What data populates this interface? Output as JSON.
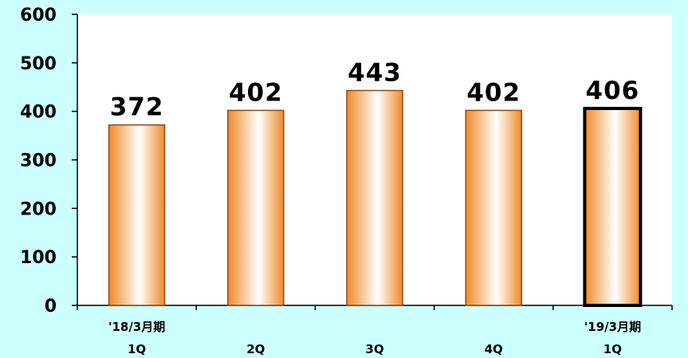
{
  "chart_data": {
    "type": "bar",
    "categories": [
      {
        "line1": "'18/3月期",
        "line2": "1Q"
      },
      {
        "line1": "",
        "line2": "2Q"
      },
      {
        "line1": "",
        "line2": "3Q"
      },
      {
        "line1": "",
        "line2": "4Q"
      },
      {
        "line1": "'19/3月期",
        "line2": "1Q"
      }
    ],
    "values": [
      372,
      402,
      443,
      402,
      406
    ],
    "data_labels": [
      "372",
      "402",
      "443",
      "402",
      "406"
    ],
    "highlighted_index": 4,
    "ylim": [
      0,
      600
    ],
    "yticks": [
      0,
      100,
      200,
      300,
      400,
      500,
      600
    ],
    "ytick_labels": [
      "0",
      "100",
      "200",
      "300",
      "400",
      "500",
      "600"
    ],
    "grid": false,
    "colors": {
      "background": "#ccffff",
      "plot_area": "#ffffff",
      "bar_edge": "#f08a2a",
      "bar_center": "#ffffff",
      "bar_border": "#8a4a1a",
      "highlight_border": "#000000"
    }
  }
}
